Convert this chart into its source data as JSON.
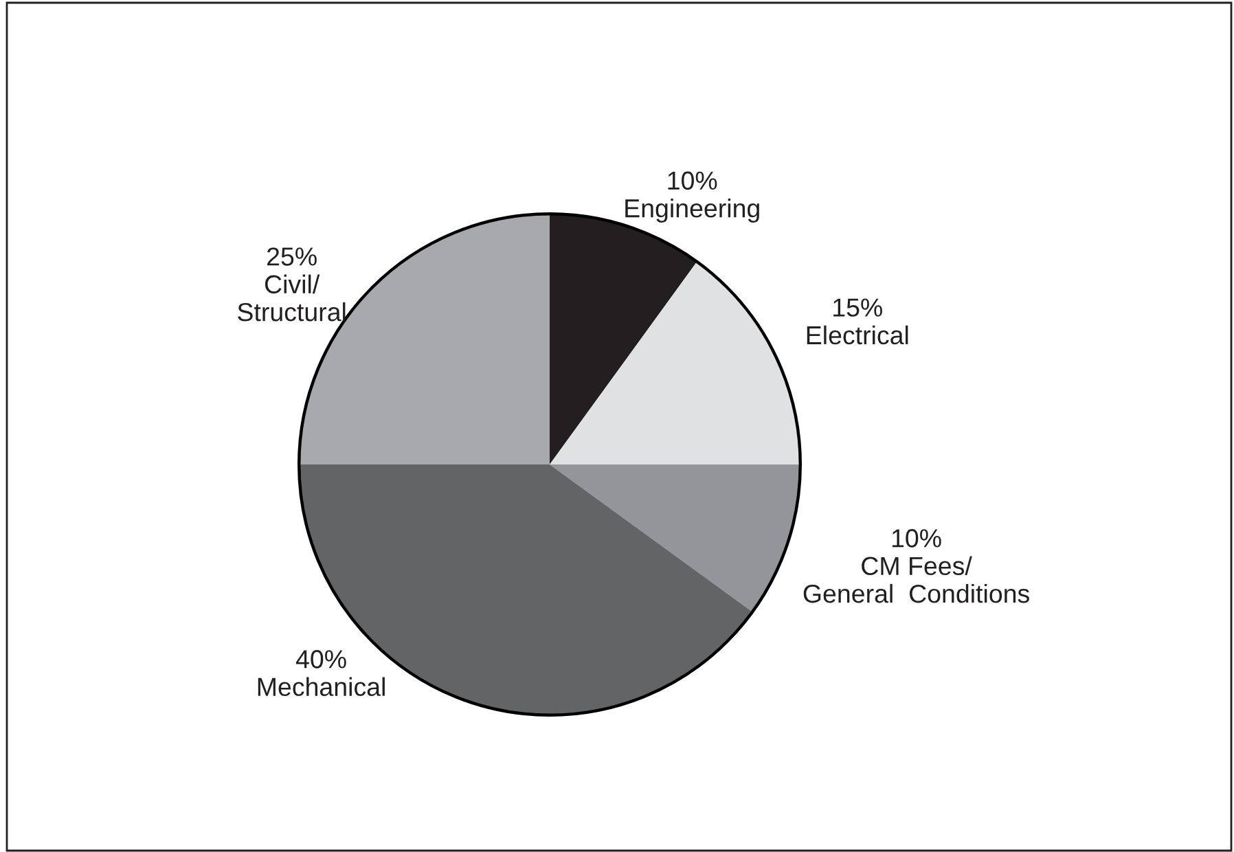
{
  "chart_data": {
    "type": "pie",
    "categories": [
      "Engineering",
      "Electrical",
      "CM Fees/\nGeneral  Conditions",
      "Mechanical",
      "Civil/\nStructural"
    ],
    "values": [
      10,
      15,
      10,
      40,
      25
    ],
    "value_labels": [
      "10%",
      "15%",
      "10%",
      "40%",
      "25%"
    ],
    "colors": [
      "#231f20",
      "#e0e1e3",
      "#939598",
      "#636466",
      "#a8a9ac"
    ],
    "legend": false
  }
}
